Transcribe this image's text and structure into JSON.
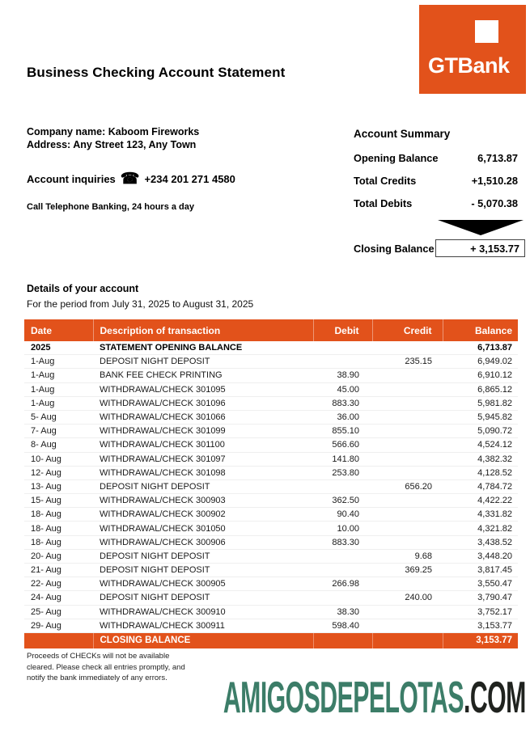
{
  "colors": {
    "accent_orange": "#e2521b",
    "watermark_green": "#3c7d68",
    "watermark_dark": "#20231f"
  },
  "header": {
    "title": "Business Checking Account Statement",
    "logo_text": "GTBank"
  },
  "company": {
    "name_line": "Company name: Kaboom Fireworks",
    "address_line": "Address: Any Street 123, Any Town",
    "inquiries_label": "Account inquiries",
    "phone_icon": "☎",
    "phone_number": "+234 201 271 4580",
    "telephone_banking": "Call Telephone Banking, 24 hours a day"
  },
  "account_summary": {
    "title": "Account Summary",
    "rows": [
      {
        "label": "Opening Balance",
        "value": "6,713.87"
      },
      {
        "label": "Total Credits",
        "value": "+1,510.28"
      },
      {
        "label": "Total Debits",
        "value": "- 5,070.38"
      }
    ],
    "closing_label": "Closing Balance",
    "closing_value": "+ 3,153.77"
  },
  "details": {
    "title": "Details of your account",
    "period": "For the period from July 31, 2025 to August 31, 2025",
    "table": {
      "headers": [
        "Date",
        "Description of transaction",
        "Debit",
        "Credit",
        "Balance"
      ],
      "opening_row": {
        "date": "2025",
        "description": "STATEMENT OPENING BALANCE",
        "debit": "",
        "credit": "",
        "balance": "6,713.87"
      },
      "rows": [
        {
          "date": "1-Aug",
          "description": "DEPOSIT NIGHT DEPOSIT",
          "debit": "",
          "credit": "235.15",
          "balance": "6,949.02"
        },
        {
          "date": "1-Aug",
          "description": "BANK FEE CHECK PRINTING",
          "debit": "38.90",
          "credit": "",
          "balance": "6,910.12"
        },
        {
          "date": "1-Aug",
          "description": "WITHDRAWAL/CHECK 301095",
          "debit": "45.00",
          "credit": "",
          "balance": "6,865.12"
        },
        {
          "date": "1-Aug",
          "description": "WITHDRAWAL/CHECK 301096",
          "debit": "883.30",
          "credit": "",
          "balance": "5,981.82"
        },
        {
          "date": "5- Aug",
          "description": "WITHDRAWAL/CHECK 301066",
          "debit": "36.00",
          "credit": "",
          "balance": "5,945.82"
        },
        {
          "date": "7- Aug",
          "description": "WITHDRAWAL/CHECK 301099",
          "debit": "855.10",
          "credit": "",
          "balance": "5,090.72"
        },
        {
          "date": "8- Aug",
          "description": "WITHDRAWAL/CHECK 301100",
          "debit": "566.60",
          "credit": "",
          "balance": "4,524.12"
        },
        {
          "date": "10- Aug",
          "description": "WITHDRAWAL/CHECK 301097",
          "debit": "141.80",
          "credit": "",
          "balance": "4,382.32"
        },
        {
          "date": "12- Aug",
          "description": "WITHDRAWAL/CHECK 301098",
          "debit": "253.80",
          "credit": "",
          "balance": "4,128.52"
        },
        {
          "date": "13- Aug",
          "description": "DEPOSIT NIGHT DEPOSIT",
          "debit": "",
          "credit": "656.20",
          "balance": "4,784.72"
        },
        {
          "date": "15- Aug",
          "description": "WITHDRAWAL/CHECK 300903",
          "debit": "362.50",
          "credit": "",
          "balance": "4,422.22"
        },
        {
          "date": "18- Aug",
          "description": "WITHDRAWAL/CHECK 300902",
          "debit": "90.40",
          "credit": "",
          "balance": "4,331.82"
        },
        {
          "date": "18- Aug",
          "description": "WITHDRAWAL/CHECK 301050",
          "debit": "10.00",
          "credit": "",
          "balance": "4,321.82"
        },
        {
          "date": "18- Aug",
          "description": "WITHDRAWAL/CHECK 300906",
          "debit": "883.30",
          "credit": "",
          "balance": "3,438.52"
        },
        {
          "date": "20- Aug",
          "description": "DEPOSIT NIGHT DEPOSIT",
          "debit": "",
          "credit": "9.68",
          "balance": "3,448.20"
        },
        {
          "date": "21- Aug",
          "description": "DEPOSIT NIGHT DEPOSIT",
          "debit": "",
          "credit": "369.25",
          "balance": "3,817.45"
        },
        {
          "date": "22- Aug",
          "description": "WITHDRAWAL/CHECK 300905",
          "debit": "266.98",
          "credit": "",
          "balance": "3,550.47"
        },
        {
          "date": "24- Aug",
          "description": "DEPOSIT NIGHT DEPOSIT",
          "debit": "",
          "credit": "240.00",
          "balance": "3,790.47"
        },
        {
          "date": "25- Aug",
          "description": "WITHDRAWAL/CHECK 300910",
          "debit": "38.30",
          "credit": "",
          "balance": "3,752.17"
        },
        {
          "date": "29- Aug",
          "description": "WITHDRAWAL/CHECK 300911",
          "debit": "598.40",
          "credit": "",
          "balance": "3,153.77"
        }
      ],
      "closing_row": {
        "date": "",
        "description": "CLOSING BALANCE",
        "debit": "",
        "credit": "",
        "balance": "3,153.77"
      }
    }
  },
  "footer": {
    "disclaimer_line1": "Proceeds of CHECKs will not be available",
    "disclaimer_line2": "cleared. Please check all entries promptly, and",
    "disclaimer_line3": "notify the bank immediately of any errors.",
    "watermark_name": "AMIGOSDEPELOTAS",
    "watermark_tld": ".COM"
  }
}
